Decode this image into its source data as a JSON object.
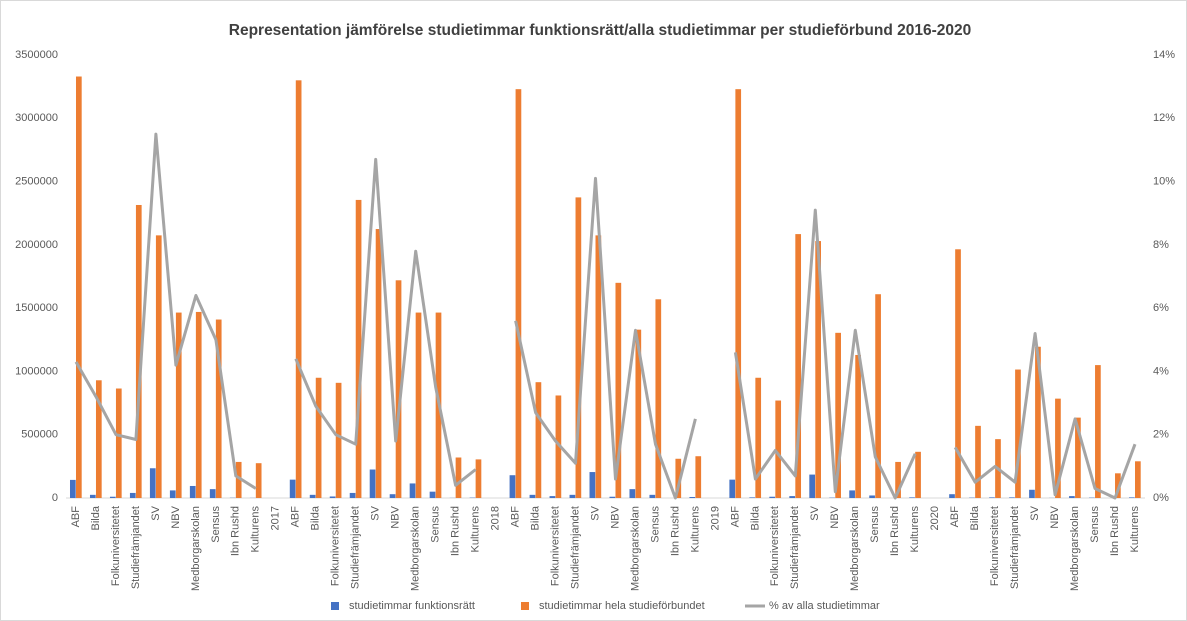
{
  "chart_data": {
    "type": "bar",
    "title": "Representation jämförelse studietimmar funktionsrätt/alla studietimmar per studieförbund 2016-2020",
    "categories": [
      "ABF",
      "Bilda",
      "Folkuniversitetet",
      "Studiefrämjandet",
      "SV",
      "NBV",
      "Medborgarskolan",
      "Sensus",
      "Ibn Rushd",
      "Kulturens",
      "2017",
      "ABF",
      "Bilda",
      "Folkuniversitetet",
      "Studiefrämjandet",
      "SV",
      "NBV",
      "Medborgarskolan",
      "Sensus",
      "Ibn Rushd",
      "Kulturens",
      "2018",
      "ABF",
      "Bilda",
      "Folkuniversitetet",
      "Studiefrämjandet",
      "SV",
      "NBV",
      "Medborgarskolan",
      "Sensus",
      "Ibn Rushd",
      "Kulturens",
      "2019",
      "ABF",
      "Bilda",
      "Folkuniversitetet",
      "Studiefrämjandet",
      "SV",
      "NBV",
      "Medborgarskolan",
      "Sensus",
      "Ibn Rushd",
      "Kulturens",
      "2020",
      "ABF",
      "Bilda",
      "Folkuniversitetet",
      "Studiefrämjandet",
      "SV",
      "NBV",
      "Medborgarskolan",
      "Sensus",
      "Ibn Rushd",
      "Kulturens"
    ],
    "series": [
      {
        "name": "studietimmar funktionsrätt",
        "color": "#4472c4",
        "type": "bar",
        "values": [
          143000,
          25000,
          10000,
          40000,
          235000,
          60000,
          95000,
          70000,
          2000,
          1000,
          null,
          145000,
          25000,
          12000,
          40000,
          225000,
          30000,
          115000,
          50000,
          1000,
          3000,
          null,
          180000,
          25000,
          15000,
          25000,
          205000,
          10000,
          70000,
          25000,
          0,
          8000,
          null,
          145000,
          5000,
          10000,
          15000,
          185000,
          3000,
          60000,
          20000,
          0,
          5000,
          null,
          30000,
          3000,
          5000,
          5000,
          65000,
          1000,
          15000,
          3000,
          0,
          5000
        ]
      },
      {
        "name": "studietimmar hela studieförbundet",
        "color": "#ed7d31",
        "type": "bar",
        "values": [
          3330000,
          930000,
          865000,
          2315000,
          2075000,
          1465000,
          1470000,
          1410000,
          285000,
          275000,
          null,
          3300000,
          950000,
          910000,
          2355000,
          2125000,
          1720000,
          1465000,
          1465000,
          320000,
          305000,
          null,
          3230000,
          915000,
          810000,
          2375000,
          2075000,
          1700000,
          1330000,
          1570000,
          310000,
          330000,
          null,
          3230000,
          950000,
          770000,
          2085000,
          2030000,
          1305000,
          1130000,
          1610000,
          285000,
          365000,
          null,
          1965000,
          570000,
          465000,
          1015000,
          1195000,
          785000,
          635000,
          1050000,
          195000,
          290000
        ]
      },
      {
        "name": "% av alla studietimmar",
        "color": "#a5a5a5",
        "type": "line",
        "axis": "y2",
        "values": [
          4.3,
          3.2,
          2.0,
          1.85,
          11.5,
          4.2,
          6.4,
          5.0,
          0.7,
          0.3,
          null,
          4.4,
          2.9,
          2.0,
          1.7,
          10.7,
          1.8,
          7.8,
          3.5,
          0.4,
          0.9,
          null,
          5.6,
          2.7,
          1.8,
          1.1,
          10.1,
          0.6,
          5.3,
          1.7,
          0.0,
          2.5,
          null,
          4.6,
          0.6,
          1.5,
          0.7,
          9.1,
          0.2,
          5.3,
          1.3,
          0.0,
          1.4,
          null,
          1.6,
          0.5,
          1.0,
          0.5,
          5.2,
          0.1,
          2.5,
          0.3,
          0.0,
          1.7
        ]
      }
    ],
    "ylim": [
      0,
      3500000
    ],
    "yticks": [
      0,
      500000,
      1000000,
      1500000,
      2000000,
      2500000,
      3000000,
      3500000
    ],
    "y2lim": [
      0,
      14
    ],
    "y2ticks": [
      {
        "value": 0,
        "label": "0%"
      },
      {
        "value": 2,
        "label": "2%"
      },
      {
        "value": 4,
        "label": "4%"
      },
      {
        "value": 6,
        "label": "6%"
      },
      {
        "value": 8,
        "label": "8%"
      },
      {
        "value": 10,
        "label": "10%"
      },
      {
        "value": 12,
        "label": "12%"
      },
      {
        "value": 14,
        "label": "14%"
      }
    ],
    "grid": false,
    "legend": "bottom"
  }
}
